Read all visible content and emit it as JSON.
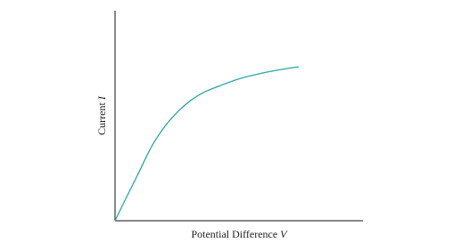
{
  "chart_data": {
    "type": "line",
    "x_label": {
      "text": "Potential Difference",
      "symbol": "V"
    },
    "y_label": {
      "text": "Current",
      "symbol": "I"
    },
    "x": [
      0,
      0.4,
      0.94,
      1.47,
      2.01,
      2.55,
      3.09,
      3.63,
      4.35,
      5.07,
      5.79,
      6.51,
      7.41
    ],
    "series": [
      {
        "color": "#2aa6a8",
        "values": [
          0,
          0.97,
          2.25,
          3.52,
          4.49,
          5.21,
          5.76,
          6.14,
          6.48,
          6.78,
          6.99,
          7.16,
          7.33
        ]
      }
    ],
    "xlim": [
      0,
      10
    ],
    "ylim": [
      0,
      10
    ]
  }
}
